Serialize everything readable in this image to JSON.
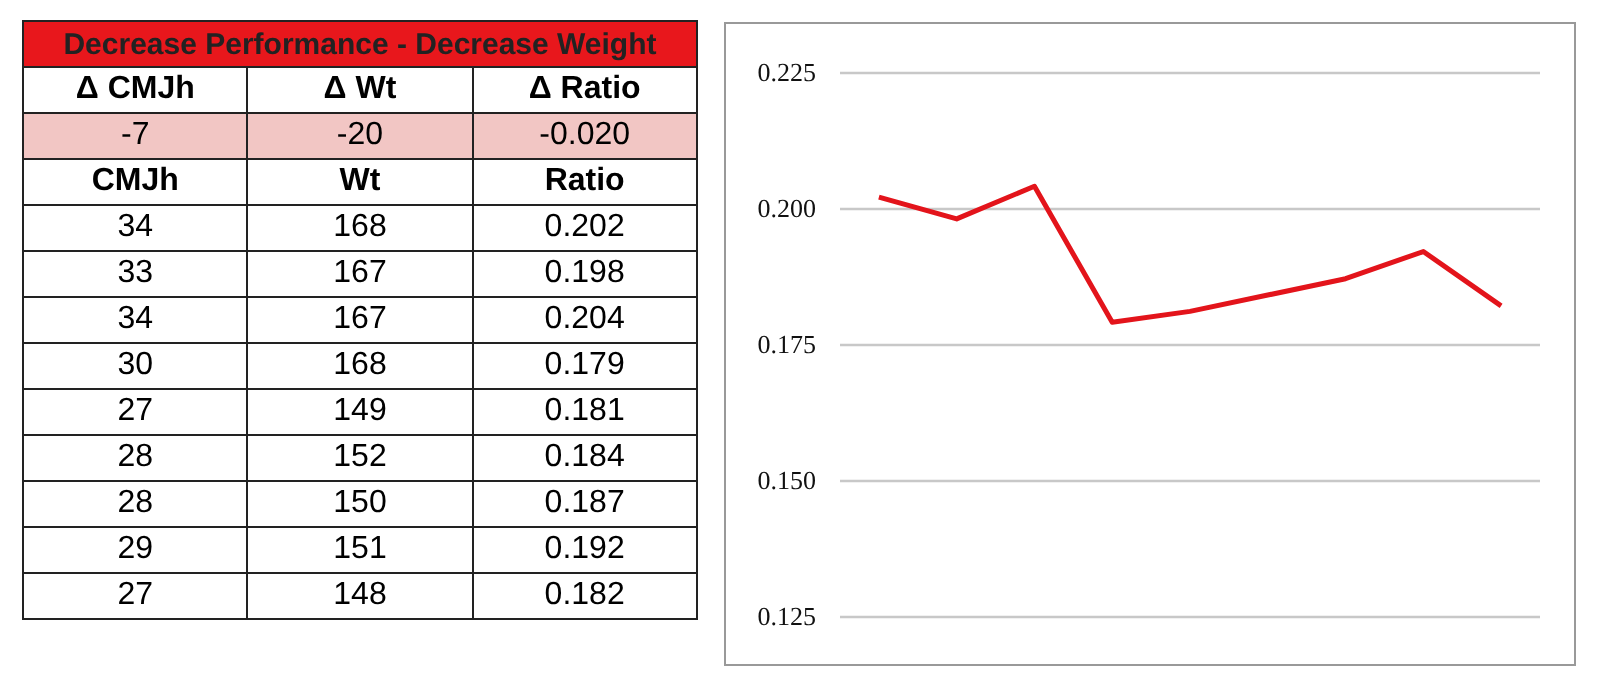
{
  "chart_data": [
    {
      "type": "other",
      "title": "Decrease Performance - Decrease Weight",
      "annotations": [
        "Δ CMJh",
        "Δ Wt",
        "Δ Ratio",
        "-7",
        "-20",
        "-0.020",
        "CMJh",
        "Wt",
        "Ratio",
        "34",
        "168",
        "0.202",
        "33",
        "167",
        "0.198",
        "34",
        "167",
        "0.204",
        "30",
        "168",
        "0.179",
        "27",
        "149",
        "0.181",
        "28",
        "152",
        "0.184",
        "28",
        "150",
        "0.187",
        "29",
        "151",
        "0.192",
        "27",
        "148",
        "0.182"
      ]
    },
    {
      "type": "line",
      "categories": [
        null,
        null,
        null,
        null,
        null,
        null,
        null,
        null,
        null
      ],
      "series": [
        {
          "color": "#e3141b",
          "values": [
            0.202,
            0.198,
            0.204,
            0.179,
            0.181,
            0.184,
            0.187,
            0.192,
            0.182
          ]
        }
      ],
      "ylim": [
        0.125,
        0.225
      ],
      "yticks": [
        0.125,
        {
          "value": 0.15,
          "label": "0.150"
        },
        0.175,
        {
          "value": 0.2,
          "label": "0.200"
        },
        0.225
      ],
      "grid": "y",
      "marker": "none",
      "line_style": "solid"
    }
  ]
}
